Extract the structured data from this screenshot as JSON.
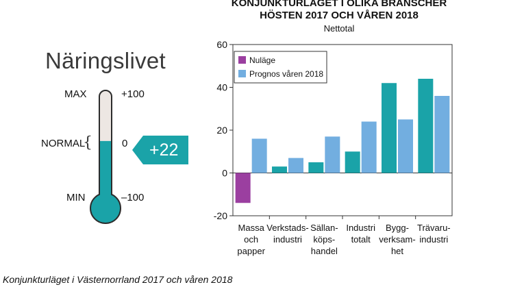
{
  "thermometer": {
    "title": "Näringslivet",
    "max_label": "MAX",
    "normal_label": "NORMAL",
    "min_label": "MIN",
    "max_value": "+100",
    "normal_value": "0",
    "min_value": "–100",
    "current_value_label": "+22",
    "current_value": 22,
    "scale_min": -100,
    "scale_max": 100,
    "fill_color": "#1aa3a8",
    "badge_color": "#1aa3a8"
  },
  "chart_data": {
    "type": "bar",
    "title_line1": "KONJUNKTURLÄGET I OLIKA BRANSCHER",
    "title_line2": "HÖSTEN 2017 OCH VÅREN 2018",
    "subtitle": "Nettotal",
    "categories": [
      [
        "Massa",
        "och",
        "papper"
      ],
      [
        "Verkstads-",
        "industri"
      ],
      [
        "Sällan-",
        "köps-",
        "handel"
      ],
      [
        "Industri",
        "totalt"
      ],
      [
        "Bygg-",
        "verksam-",
        "het"
      ],
      [
        "Trävaru-",
        "industri"
      ]
    ],
    "series": [
      {
        "name": "Nuläge",
        "color_first": "#9b3fa0",
        "color": "#1aa3a8",
        "values": [
          -14,
          3,
          5,
          10,
          42,
          44
        ]
      },
      {
        "name": "Prognos våren 2018",
        "color": "#72aee0",
        "values": [
          16,
          7,
          17,
          24,
          25,
          36
        ]
      }
    ],
    "legend_marker_colors": [
      "#9b3fa0",
      "#72aee0"
    ],
    "ylim": [
      -20,
      60
    ],
    "yticks": [
      -20,
      0,
      20,
      40,
      60
    ],
    "legend_position": "top-left"
  },
  "caption": "Konjunkturläget i Västernorrland 2017 och våren 2018"
}
